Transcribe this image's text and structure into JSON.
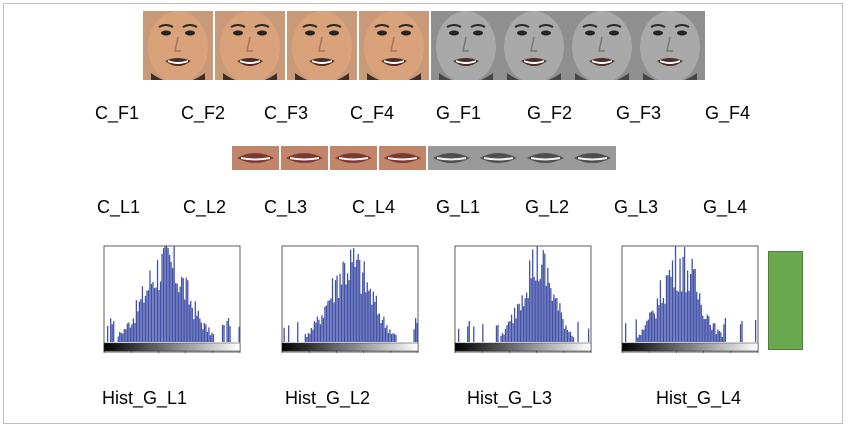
{
  "faces": [
    {
      "label": "C_F1",
      "tone": "color"
    },
    {
      "label": "C_F2",
      "tone": "color"
    },
    {
      "label": "C_F3",
      "tone": "color"
    },
    {
      "label": "C_F4",
      "tone": "color"
    },
    {
      "label": "G_F1",
      "tone": "gray"
    },
    {
      "label": "G_F2",
      "tone": "gray"
    },
    {
      "label": "G_F3",
      "tone": "gray"
    },
    {
      "label": "G_F4",
      "tone": "gray"
    }
  ],
  "lips": [
    {
      "label": "C_L1",
      "tone": "color"
    },
    {
      "label": "C_L2",
      "tone": "color"
    },
    {
      "label": "C_L3",
      "tone": "color"
    },
    {
      "label": "C_L4",
      "tone": "color"
    },
    {
      "label": "G_L1",
      "tone": "gray"
    },
    {
      "label": "G_L2",
      "tone": "gray"
    },
    {
      "label": "G_L3",
      "tone": "gray"
    },
    {
      "label": "G_L4",
      "tone": "gray"
    }
  ],
  "histograms": [
    {
      "label": "Hist_G_L1"
    },
    {
      "label": "Hist_G_L2"
    },
    {
      "label": "Hist_G_L3"
    },
    {
      "label": "Hist_G_L4"
    }
  ],
  "colors": {
    "bar": "#4150a8",
    "marker": "#6aa84f",
    "skin": "#d9a27a",
    "hair": "#2b1d15",
    "gray_skin": "#a9a9a9"
  }
}
